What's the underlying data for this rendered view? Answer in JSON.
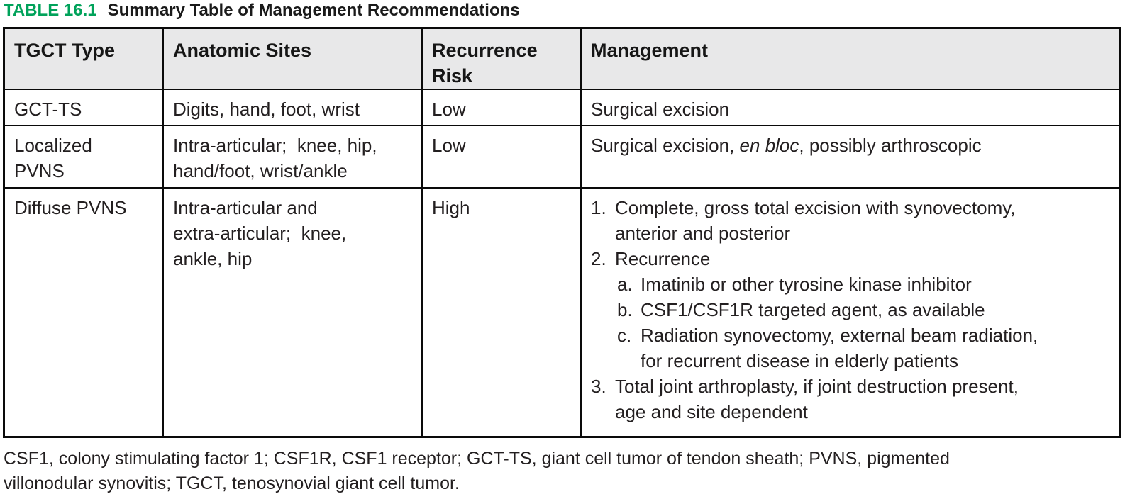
{
  "title": {
    "label": "TABLE 16.1",
    "text": "Summary Table of Management Recommendations"
  },
  "colors": {
    "accent_green": "#00a25a",
    "header_bg": "#e8e8e9",
    "border": "#0a0a0a",
    "text": "#231f20"
  },
  "table": {
    "headers": [
      {
        "lines": [
          "TGCT Type"
        ]
      },
      {
        "lines": [
          "Anatomic Sites"
        ]
      },
      {
        "lines": [
          "Recurrence",
          "Risk"
        ]
      },
      {
        "lines": [
          "Management"
        ]
      }
    ],
    "rows": [
      {
        "type_lines": [
          "GCT-TS"
        ],
        "sites_lines": [
          "Digits, hand, foot, wrist"
        ],
        "risk": "Low",
        "management": {
          "kind": "text",
          "segments": [
            {
              "text": "Surgical excision",
              "italic": false
            }
          ]
        }
      },
      {
        "type_lines": [
          "Localized",
          "PVNS"
        ],
        "sites_lines": [
          "Intra-articular;  knee, hip,",
          "hand/foot, wrist/ankle"
        ],
        "risk": "Low",
        "management": {
          "kind": "text",
          "segments": [
            {
              "text": "Surgical excision, ",
              "italic": false
            },
            {
              "text": "en bloc",
              "italic": true
            },
            {
              "text": ", possibly arthroscopic",
              "italic": false
            }
          ]
        }
      },
      {
        "type_lines": [
          "Diffuse PVNS"
        ],
        "sites_lines": [
          "Intra-articular and",
          "extra-articular;  knee,",
          "ankle, hip"
        ],
        "risk": "High",
        "management": {
          "kind": "list",
          "items": [
            {
              "marker": "1.",
              "level": 1,
              "lines": [
                "Complete, gross total excision with synovectomy,",
                "anterior and posterior"
              ]
            },
            {
              "marker": "2.",
              "level": 1,
              "lines": [
                "Recurrence"
              ]
            },
            {
              "marker": "a.",
              "level": 2,
              "lines": [
                "Imatinib or other tyrosine kinase inhibitor"
              ]
            },
            {
              "marker": "b.",
              "level": 2,
              "lines": [
                "CSF1/CSF1R targeted agent, as available"
              ]
            },
            {
              "marker": "c.",
              "level": 2,
              "lines": [
                "Radiation synovectomy, external beam radiation,",
                "for recurrent disease in elderly patients"
              ]
            },
            {
              "marker": "3.",
              "level": 1,
              "lines": [
                "Total joint arthroplasty, if joint destruction present,",
                "age and site dependent"
              ]
            }
          ]
        }
      }
    ]
  },
  "footnote": {
    "lines": [
      "CSF1, colony stimulating factor 1; CSF1R, CSF1 receptor; GCT-TS, giant cell tumor of tendon sheath; PVNS, pigmented",
      "villonodular synovitis; TGCT, tenosynovial giant cell tumor."
    ]
  }
}
